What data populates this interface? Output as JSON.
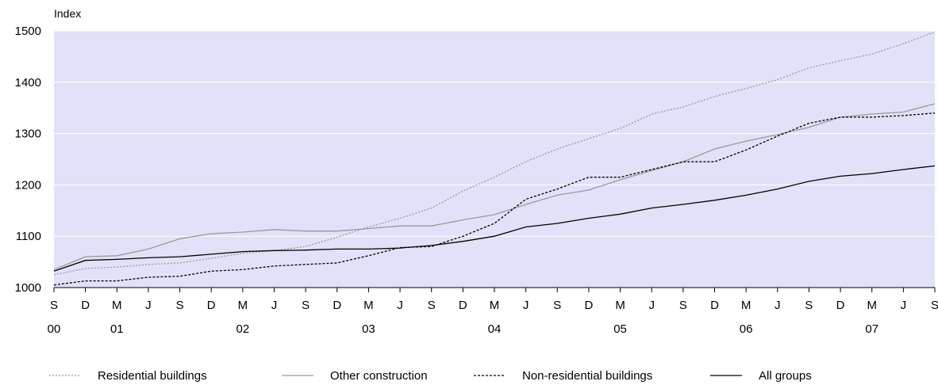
{
  "chart_data": {
    "type": "line",
    "ylabel": "Index",
    "ylim": [
      1000,
      1500
    ],
    "yticks": [
      1000,
      1100,
      1200,
      1300,
      1400,
      1500
    ],
    "grid": true,
    "legend_position": "bottom",
    "x_start": "2000-09",
    "x_step_months": 3,
    "month_labels": [
      "S",
      "D",
      "M",
      "J",
      "S",
      "D",
      "M",
      "J",
      "S",
      "D",
      "M",
      "J",
      "S",
      "D",
      "M",
      "J",
      "S",
      "D",
      "M",
      "J",
      "S",
      "D",
      "M",
      "J",
      "S",
      "D",
      "M",
      "J",
      "S"
    ],
    "year_labels": [
      {
        "label": "00",
        "index": 0
      },
      {
        "label": "01",
        "index": 2
      },
      {
        "label": "02",
        "index": 6
      },
      {
        "label": "03",
        "index": 10
      },
      {
        "label": "04",
        "index": 14
      },
      {
        "label": "05",
        "index": 18
      },
      {
        "label": "06",
        "index": 22
      },
      {
        "label": "07",
        "index": 26
      }
    ],
    "series": [
      {
        "name": "Residential buildings",
        "color": "#9a9a9a",
        "dash": "2,2",
        "values": [
          1025,
          1037,
          1040,
          1045,
          1048,
          1057,
          1067,
          1072,
          1080,
          1098,
          1118,
          1135,
          1155,
          1188,
          1215,
          1245,
          1270,
          1290,
          1310,
          1338,
          1352,
          1372,
          1388,
          1405,
          1428,
          1442,
          1455,
          1475,
          1498
        ]
      },
      {
        "name": "Other construction",
        "color": "#9a9a9a",
        "dash": "",
        "values": [
          1035,
          1060,
          1062,
          1075,
          1095,
          1105,
          1108,
          1113,
          1110,
          1110,
          1115,
          1120,
          1120,
          1132,
          1142,
          1162,
          1180,
          1190,
          1210,
          1228,
          1245,
          1270,
          1285,
          1298,
          1312,
          1332,
          1338,
          1342,
          1358
        ]
      },
      {
        "name": "Non-residential buildings",
        "color": "#000000",
        "dash": "3,2",
        "values": [
          1005,
          1013,
          1013,
          1020,
          1022,
          1032,
          1035,
          1042,
          1045,
          1048,
          1062,
          1078,
          1080,
          1100,
          1125,
          1172,
          1192,
          1215,
          1215,
          1230,
          1245,
          1245,
          1268,
          1295,
          1320,
          1332,
          1332,
          1335,
          1340
        ]
      },
      {
        "name": "All groups",
        "color": "#000000",
        "dash": "",
        "values": [
          1032,
          1053,
          1055,
          1058,
          1060,
          1065,
          1070,
          1072,
          1073,
          1075,
          1075,
          1077,
          1082,
          1090,
          1100,
          1118,
          1125,
          1135,
          1143,
          1155,
          1162,
          1170,
          1180,
          1192,
          1207,
          1217,
          1222,
          1230,
          1237
        ]
      }
    ]
  }
}
